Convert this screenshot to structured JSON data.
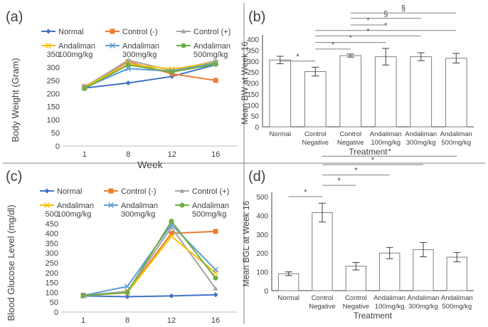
{
  "chart_data": [
    {
      "panel": "(a)",
      "type": "line",
      "ylabel": "Body Weight (Gram)",
      "xlabel": "Week",
      "x": [
        1,
        8,
        12,
        16
      ],
      "xticks": [
        "1",
        "8",
        "12",
        "16"
      ],
      "ylim": [
        0,
        350
      ],
      "yticks": [
        "0",
        "50",
        "100",
        "150",
        "200",
        "250",
        "300",
        "350"
      ],
      "legend_position": "top",
      "series": [
        {
          "name": "Normal",
          "name2": "",
          "color": "#4472C4",
          "marker": "diamond",
          "values": [
            221,
            240,
            265,
            310
          ]
        },
        {
          "name": "Control (-)",
          "name2": "",
          "color": "#ED7D31",
          "marker": "square",
          "values": [
            226,
            321,
            275,
            250
          ]
        },
        {
          "name": "Control (+)",
          "name2": "",
          "color": "#A5A5A5",
          "marker": "triangle",
          "values": [
            224,
            327,
            287,
            324
          ]
        },
        {
          "name": "Andaliman",
          "name2": "100mg/kg",
          "color": "#FFC000",
          "marker": "cross",
          "values": [
            225,
            312,
            293,
            318
          ]
        },
        {
          "name": "Andaliman",
          "name2": "300mg/kg",
          "color": "#5B9BD5",
          "marker": "cross",
          "values": [
            222,
            295,
            285,
            316
          ]
        },
        {
          "name": "Andaliman",
          "name2": "500mg/kg",
          "color": "#70AD47",
          "marker": "circle",
          "values": [
            219,
            309,
            282,
            312
          ]
        }
      ]
    },
    {
      "panel": "(b)",
      "type": "bar",
      "ylabel": "Mean BW at Week 16",
      "xlabel": "Treatment",
      "ylim": [
        0,
        400
      ],
      "yticks": [
        "0",
        "50",
        "100",
        "150",
        "200",
        "250",
        "300",
        "350",
        "400"
      ],
      "categories": [
        {
          "line1": "Normal",
          "line2": ""
        },
        {
          "line1": "Control",
          "line2": "Negative"
        },
        {
          "line1": "Control",
          "line2": "Negative"
        },
        {
          "line1": "Andaliman",
          "line2": "100mg/kg"
        },
        {
          "line1": "Andaliman",
          "line2": "300mg/kg"
        },
        {
          "line1": "Andaliman",
          "line2": "500mg/kg"
        }
      ],
      "values": [
        305,
        252,
        325,
        320,
        320,
        313
      ],
      "errors": [
        17,
        20,
        7,
        38,
        18,
        22
      ],
      "significance": [
        {
          "from": 0,
          "to": 1,
          "label": "*",
          "level": 300
        },
        {
          "from": 1,
          "to": 2,
          "label": "*",
          "level": 355
        },
        {
          "from": 1,
          "to": 3,
          "label": "*",
          "level": 385
        },
        {
          "from": 1,
          "to": 4,
          "label": "*",
          "level": 415
        },
        {
          "from": 1,
          "to": 5,
          "label": "*",
          "level": 440
        },
        {
          "from": 2,
          "to": 3,
          "label": "*",
          "level": 465
        },
        {
          "from": 2,
          "to": 4,
          "label": "§",
          "level": 495
        },
        {
          "from": 2,
          "to": 5,
          "label": "§",
          "level": 520
        }
      ]
    },
    {
      "panel": "(c)",
      "type": "line",
      "ylabel": "Blood Glucose Level (mg/dl)",
      "xlabel": "Week",
      "x": [
        1,
        8,
        12,
        16
      ],
      "xticks": [
        "1",
        "8",
        "12",
        "16"
      ],
      "ylim": [
        0,
        500
      ],
      "yticks": [
        "0",
        "50",
        "100",
        "150",
        "200",
        "250",
        "300",
        "350",
        "400",
        "450",
        "500"
      ],
      "legend_position": "top",
      "series": [
        {
          "name": "Normal",
          "name2": "",
          "color": "#4472C4",
          "marker": "diamond",
          "values": [
            82,
            78,
            82,
            88
          ]
        },
        {
          "name": "Control (-)",
          "name2": "",
          "color": "#ED7D31",
          "marker": "square",
          "values": [
            85,
            102,
            400,
            410
          ]
        },
        {
          "name": "Control (+)",
          "name2": "",
          "color": "#A5A5A5",
          "marker": "triangle",
          "values": [
            84,
            105,
            430,
            120
          ]
        },
        {
          "name": "Andaliman",
          "name2": "100mg/kg",
          "color": "#FFC000",
          "marker": "cross",
          "values": [
            83,
            98,
            385,
            200
          ]
        },
        {
          "name": "Andaliman",
          "name2": "300mg/kg",
          "color": "#5B9BD5",
          "marker": "cross",
          "values": [
            84,
            130,
            445,
            215
          ]
        },
        {
          "name": "Andaliman",
          "name2": "500mg/kg",
          "color": "#70AD47",
          "marker": "circle",
          "values": [
            83,
            100,
            462,
            173
          ]
        }
      ]
    },
    {
      "panel": "(d)",
      "type": "bar",
      "ylabel": "Mean BGL at Week 16",
      "xlabel": "Treatment",
      "ylim": [
        0,
        500
      ],
      "yticks": [
        "0",
        "100",
        "200",
        "300",
        "400",
        "500"
      ],
      "categories": [
        {
          "line1": "Normal",
          "line2": ""
        },
        {
          "line1": "Control",
          "line2": "Negative"
        },
        {
          "line1": "Control",
          "line2": "Negative"
        },
        {
          "line1": "Andaliman",
          "line2": "100mg/kg"
        },
        {
          "line1": "Andaliman",
          "line2": "300mg/kg"
        },
        {
          "line1": "Andaliman",
          "line2": "500mg/kg"
        }
      ],
      "values": [
        90,
        415,
        130,
        200,
        218,
        178
      ],
      "errors": [
        10,
        50,
        20,
        30,
        38,
        25
      ],
      "significance": [
        {
          "from": 0,
          "to": 1,
          "label": "*",
          "level": 500
        },
        {
          "from": 1,
          "to": 2,
          "label": "*",
          "level": 560
        },
        {
          "from": 1,
          "to": 3,
          "label": "*",
          "level": 615
        },
        {
          "from": 1,
          "to": 4,
          "label": "*",
          "level": 670
        },
        {
          "from": 1,
          "to": 5,
          "label": "*",
          "level": 715
        }
      ]
    }
  ]
}
